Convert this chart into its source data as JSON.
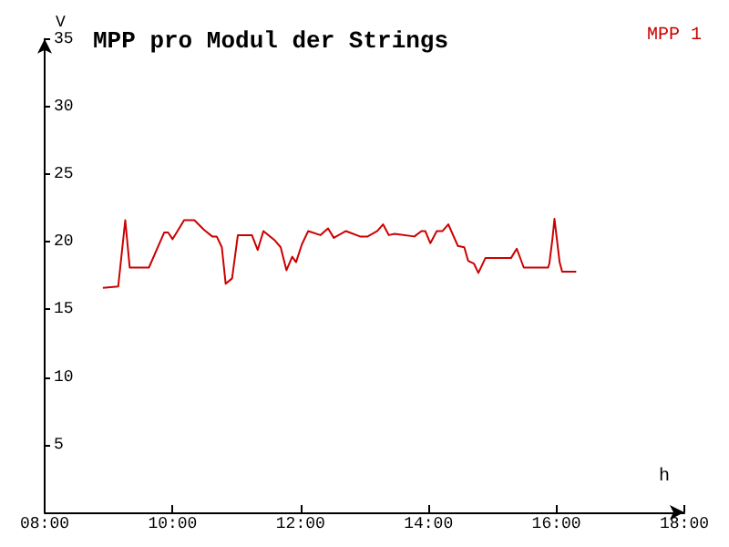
{
  "chart_data": {
    "type": "line",
    "title": "MPP pro Modul der Strings",
    "xlabel": "h",
    "ylabel": "V",
    "legend": "top right",
    "grid": false,
    "marker": "none",
    "line_style": "solid",
    "xlim": [
      8,
      18
    ],
    "xticks": [
      {
        "value": 8,
        "label": "08:00"
      },
      {
        "value": 10,
        "label": "10:00"
      },
      {
        "value": 12,
        "label": "12:00"
      },
      {
        "value": 14,
        "label": "14:00"
      },
      {
        "value": 16,
        "label": "16:00"
      },
      {
        "value": 18,
        "label": "18:00"
      }
    ],
    "ylim": [
      0,
      35
    ],
    "yticks": [
      5,
      10,
      15,
      20,
      25,
      30,
      35
    ],
    "x": [
      8.91,
      9.15,
      9.26,
      9.33,
      9.63,
      9.87,
      9.93,
      10.0,
      10.18,
      10.34,
      10.49,
      10.62,
      10.69,
      10.77,
      10.83,
      10.93,
      11.02,
      11.24,
      11.33,
      11.42,
      11.6,
      11.69,
      11.78,
      11.87,
      11.93,
      12.02,
      12.12,
      12.31,
      12.43,
      12.52,
      12.71,
      12.93,
      13.05,
      13.2,
      13.29,
      13.38,
      13.47,
      13.78,
      13.89,
      13.95,
      14.03,
      14.13,
      14.22,
      14.31,
      14.46,
      14.56,
      14.62,
      14.71,
      14.78,
      14.89,
      15.29,
      15.38,
      15.49,
      15.87,
      15.89,
      15.94,
      15.97,
      16.05,
      16.09,
      16.31
    ],
    "series": [
      {
        "name": "MPP 1",
        "color": "#cc0000",
        "values": [
          16.6,
          16.7,
          21.6,
          18.1,
          18.1,
          20.7,
          20.7,
          20.2,
          21.6,
          21.6,
          20.9,
          20.4,
          20.4,
          19.6,
          16.9,
          17.3,
          20.5,
          20.5,
          19.4,
          20.8,
          20.1,
          19.6,
          17.9,
          18.9,
          18.5,
          19.8,
          20.8,
          20.5,
          21.0,
          20.3,
          20.8,
          20.4,
          20.4,
          20.8,
          21.3,
          20.5,
          20.6,
          20.4,
          20.8,
          20.8,
          19.9,
          20.8,
          20.8,
          21.3,
          19.7,
          19.6,
          18.6,
          18.4,
          17.7,
          18.8,
          18.8,
          19.5,
          18.1,
          18.1,
          18.4,
          20.3,
          21.7,
          18.5,
          17.8,
          17.8
        ]
      }
    ]
  }
}
